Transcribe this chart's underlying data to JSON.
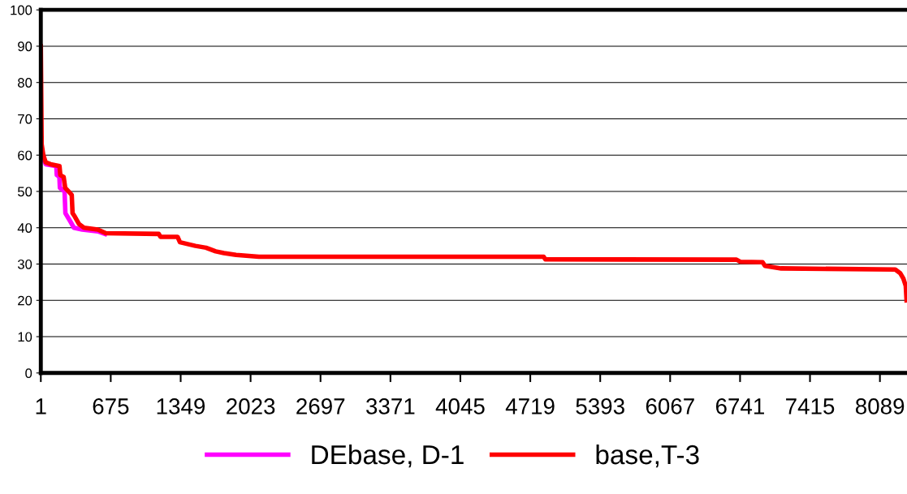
{
  "chart_data": {
    "type": "line",
    "xticks": [
      1,
      675,
      1349,
      2023,
      2697,
      3371,
      4045,
      4719,
      5393,
      6067,
      6741,
      7415,
      8089
    ],
    "xlim": [
      1,
      8350
    ],
    "ylim": [
      0,
      100
    ],
    "yticks": [
      0,
      10,
      20,
      30,
      40,
      50,
      60,
      70,
      80,
      90,
      100
    ],
    "grid": "y",
    "legend": "bottom",
    "line_style": "solid",
    "marker": "none",
    "series": [
      {
        "name": "DEbase, D-1",
        "color": "#ff00ff",
        "x": [
          25,
          48,
          150,
          155,
          180,
          185,
          230,
          238,
          280,
          320,
          400,
          550,
          620
        ],
        "values": [
          59,
          57.5,
          57,
          54.5,
          54,
          51,
          50,
          44,
          42,
          40,
          39.5,
          39,
          38.3
        ]
      },
      {
        "name": "base,T-3",
        "color": "#ff0000",
        "x": [
          1,
          9,
          25,
          48,
          95,
          181,
          189,
          221,
          236,
          268,
          299,
          307,
          330,
          370,
          417,
          550,
          628,
          1138,
          1154,
          1319,
          1342,
          1491,
          1593,
          1687,
          1766,
          1883,
          2103,
          4848,
          4864,
          6707,
          6746,
          6958,
          6981,
          7138,
          8237,
          8284,
          8315,
          8338,
          8346
        ],
        "values": [
          90,
          63,
          60,
          58,
          57.5,
          57,
          54.5,
          54,
          51,
          50,
          49,
          44,
          43,
          41,
          40,
          39.5,
          38.5,
          38.3,
          37.5,
          37.5,
          36,
          35,
          34.5,
          33.5,
          33,
          32.5,
          32,
          32,
          31.3,
          31.2,
          30.6,
          30.5,
          29.5,
          28.8,
          28.5,
          27.5,
          26,
          24,
          20
        ]
      }
    ]
  }
}
